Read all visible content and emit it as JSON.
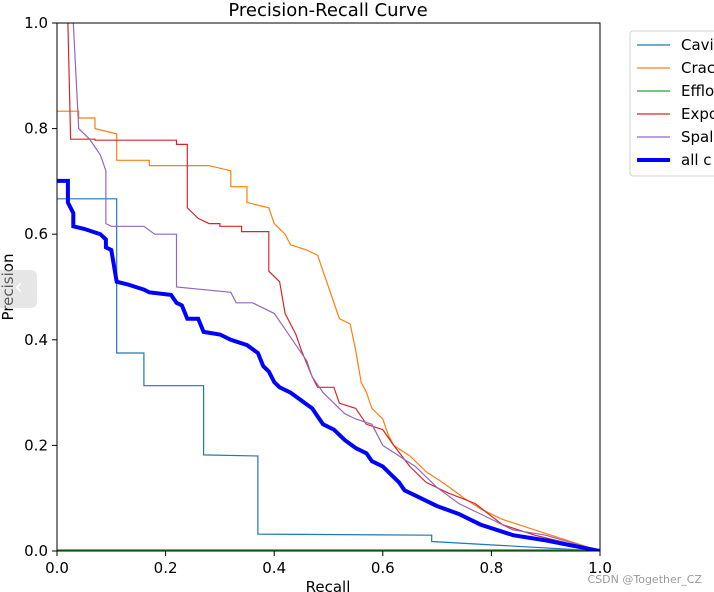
{
  "chart_data": {
    "type": "line",
    "title": "Precision-Recall Curve",
    "xlabel": "Recall",
    "ylabel": "Precision",
    "xlim": [
      0,
      1
    ],
    "ylim": [
      0,
      1
    ],
    "xticks": [
      "0.0",
      "0.2",
      "0.4",
      "0.6",
      "0.8",
      "1.0"
    ],
    "yticks": [
      "0.0",
      "0.2",
      "0.4",
      "0.6",
      "0.8",
      "1.0"
    ],
    "grid": false,
    "legend_position": "outside-top-right",
    "series": [
      {
        "name": "Cavi",
        "color": "#1f77b4",
        "width": 1.2,
        "points": [
          [
            0,
            0.667
          ],
          [
            0.11,
            0.667
          ],
          [
            0.11,
            0.375
          ],
          [
            0.16,
            0.375
          ],
          [
            0.16,
            0.313
          ],
          [
            0.27,
            0.313
          ],
          [
            0.27,
            0.182
          ],
          [
            0.37,
            0.18
          ],
          [
            0.37,
            0.032
          ],
          [
            0.69,
            0.03
          ],
          [
            0.69,
            0.018
          ],
          [
            1.0,
            0.0
          ]
        ]
      },
      {
        "name": "Crac",
        "color": "#ff7f0e",
        "width": 1.2,
        "points": [
          [
            0,
            0.833
          ],
          [
            0.04,
            0.833
          ],
          [
            0.04,
            0.82
          ],
          [
            0.07,
            0.82
          ],
          [
            0.07,
            0.8
          ],
          [
            0.11,
            0.79
          ],
          [
            0.11,
            0.74
          ],
          [
            0.17,
            0.74
          ],
          [
            0.17,
            0.73
          ],
          [
            0.28,
            0.73
          ],
          [
            0.32,
            0.72
          ],
          [
            0.32,
            0.69
          ],
          [
            0.35,
            0.69
          ],
          [
            0.35,
            0.66
          ],
          [
            0.39,
            0.65
          ],
          [
            0.4,
            0.62
          ],
          [
            0.42,
            0.6
          ],
          [
            0.43,
            0.58
          ],
          [
            0.46,
            0.57
          ],
          [
            0.48,
            0.56
          ],
          [
            0.5,
            0.5
          ],
          [
            0.52,
            0.44
          ],
          [
            0.54,
            0.43
          ],
          [
            0.55,
            0.38
          ],
          [
            0.56,
            0.32
          ],
          [
            0.57,
            0.3
          ],
          [
            0.58,
            0.27
          ],
          [
            0.6,
            0.25
          ],
          [
            0.61,
            0.22
          ],
          [
            0.62,
            0.2
          ],
          [
            0.65,
            0.18
          ],
          [
            0.68,
            0.15
          ],
          [
            0.71,
            0.13
          ],
          [
            0.75,
            0.1
          ],
          [
            0.78,
            0.08
          ],
          [
            0.82,
            0.06
          ],
          [
            0.88,
            0.04
          ],
          [
            1.0,
            0.0
          ]
        ]
      },
      {
        "name": "Efflo",
        "color": "#2ca02c",
        "width": 1.2,
        "points": [
          [
            0,
            0.002
          ],
          [
            1.0,
            0.002
          ]
        ]
      },
      {
        "name": "Expo",
        "color": "#d62728",
        "width": 1.2,
        "points": [
          [
            0.02,
            1.0
          ],
          [
            0.025,
            0.78
          ],
          [
            0.07,
            0.78
          ],
          [
            0.07,
            0.778
          ],
          [
            0.22,
            0.778
          ],
          [
            0.22,
            0.77
          ],
          [
            0.24,
            0.77
          ],
          [
            0.24,
            0.65
          ],
          [
            0.26,
            0.63
          ],
          [
            0.28,
            0.62
          ],
          [
            0.3,
            0.62
          ],
          [
            0.3,
            0.615
          ],
          [
            0.34,
            0.615
          ],
          [
            0.34,
            0.605
          ],
          [
            0.39,
            0.605
          ],
          [
            0.39,
            0.53
          ],
          [
            0.41,
            0.51
          ],
          [
            0.42,
            0.45
          ],
          [
            0.43,
            0.43
          ],
          [
            0.44,
            0.41
          ],
          [
            0.45,
            0.38
          ],
          [
            0.47,
            0.33
          ],
          [
            0.48,
            0.31
          ],
          [
            0.51,
            0.31
          ],
          [
            0.52,
            0.28
          ],
          [
            0.55,
            0.27
          ],
          [
            0.57,
            0.24
          ],
          [
            0.6,
            0.23
          ],
          [
            0.62,
            0.2
          ],
          [
            0.65,
            0.16
          ],
          [
            0.68,
            0.13
          ],
          [
            0.72,
            0.11
          ],
          [
            0.77,
            0.09
          ],
          [
            0.82,
            0.05
          ],
          [
            0.88,
            0.03
          ],
          [
            1.0,
            0.0
          ]
        ]
      },
      {
        "name": "Spal",
        "color": "#9467bd",
        "width": 1.2,
        "points": [
          [
            0.03,
            1.0
          ],
          [
            0.04,
            0.8
          ],
          [
            0.06,
            0.78
          ],
          [
            0.08,
            0.75
          ],
          [
            0.09,
            0.72
          ],
          [
            0.09,
            0.62
          ],
          [
            0.1,
            0.615
          ],
          [
            0.16,
            0.615
          ],
          [
            0.18,
            0.6
          ],
          [
            0.22,
            0.6
          ],
          [
            0.22,
            0.5
          ],
          [
            0.32,
            0.49
          ],
          [
            0.33,
            0.47
          ],
          [
            0.36,
            0.47
          ],
          [
            0.38,
            0.46
          ],
          [
            0.4,
            0.45
          ],
          [
            0.42,
            0.42
          ],
          [
            0.44,
            0.39
          ],
          [
            0.46,
            0.36
          ],
          [
            0.47,
            0.33
          ],
          [
            0.49,
            0.3
          ],
          [
            0.51,
            0.28
          ],
          [
            0.53,
            0.26
          ],
          [
            0.55,
            0.25
          ],
          [
            0.58,
            0.24
          ],
          [
            0.6,
            0.2
          ],
          [
            0.63,
            0.18
          ],
          [
            0.66,
            0.16
          ],
          [
            0.7,
            0.12
          ],
          [
            0.74,
            0.09
          ],
          [
            0.78,
            0.07
          ],
          [
            0.84,
            0.04
          ],
          [
            0.9,
            0.03
          ],
          [
            1.0,
            0.0
          ]
        ]
      },
      {
        "name": "all c",
        "color": "#0000ff",
        "width": 4,
        "points": [
          [
            0,
            0.701
          ],
          [
            0.02,
            0.701
          ],
          [
            0.02,
            0.66
          ],
          [
            0.03,
            0.64
          ],
          [
            0.03,
            0.615
          ],
          [
            0.05,
            0.61
          ],
          [
            0.08,
            0.6
          ],
          [
            0.09,
            0.59
          ],
          [
            0.09,
            0.575
          ],
          [
            0.1,
            0.57
          ],
          [
            0.11,
            0.51
          ],
          [
            0.13,
            0.505
          ],
          [
            0.16,
            0.495
          ],
          [
            0.17,
            0.49
          ],
          [
            0.21,
            0.485
          ],
          [
            0.22,
            0.47
          ],
          [
            0.23,
            0.465
          ],
          [
            0.24,
            0.44
          ],
          [
            0.26,
            0.44
          ],
          [
            0.27,
            0.415
          ],
          [
            0.3,
            0.41
          ],
          [
            0.32,
            0.4
          ],
          [
            0.35,
            0.39
          ],
          [
            0.37,
            0.375
          ],
          [
            0.38,
            0.35
          ],
          [
            0.39,
            0.34
          ],
          [
            0.4,
            0.32
          ],
          [
            0.41,
            0.31
          ],
          [
            0.43,
            0.3
          ],
          [
            0.45,
            0.285
          ],
          [
            0.47,
            0.27
          ],
          [
            0.48,
            0.255
          ],
          [
            0.49,
            0.24
          ],
          [
            0.51,
            0.23
          ],
          [
            0.53,
            0.21
          ],
          [
            0.55,
            0.195
          ],
          [
            0.57,
            0.185
          ],
          [
            0.58,
            0.17
          ],
          [
            0.6,
            0.16
          ],
          [
            0.61,
            0.15
          ],
          [
            0.63,
            0.13
          ],
          [
            0.64,
            0.115
          ],
          [
            0.66,
            0.105
          ],
          [
            0.7,
            0.085
          ],
          [
            0.74,
            0.07
          ],
          [
            0.78,
            0.05
          ],
          [
            0.84,
            0.03
          ],
          [
            0.9,
            0.02
          ],
          [
            1.0,
            0.0
          ]
        ]
      }
    ]
  },
  "watermark": "CSDN @Together_CZ",
  "nav": {
    "prev_glyph": "‹"
  }
}
